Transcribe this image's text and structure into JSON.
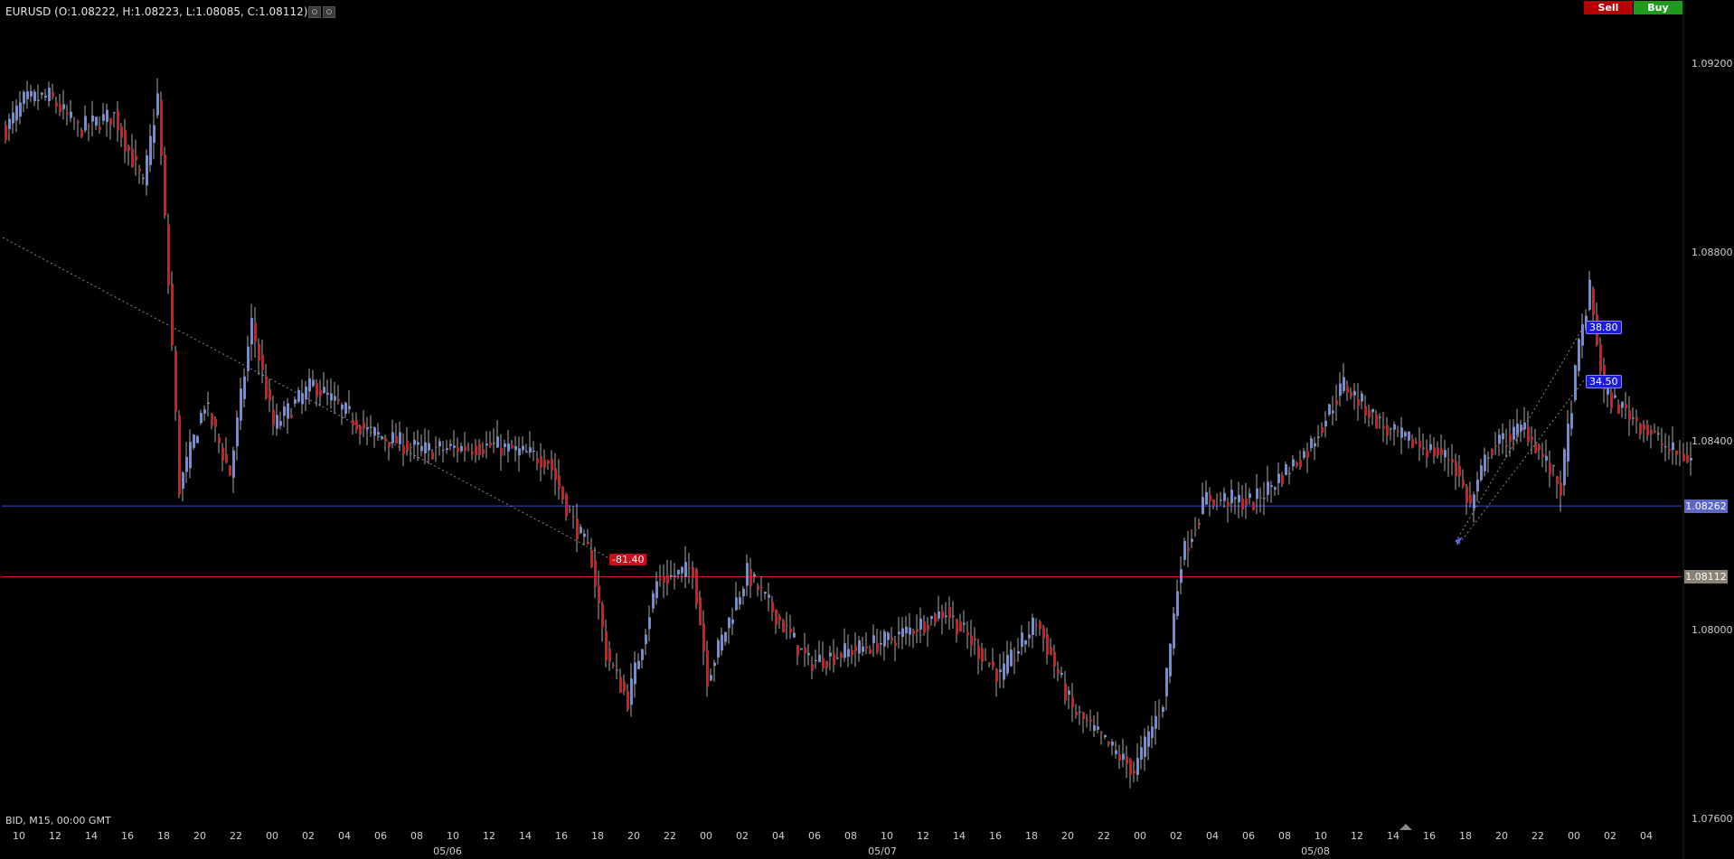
{
  "header": {
    "title": "EURUSD (O:1.08222, H:1.08223, L:1.08085, C:1.08112)"
  },
  "trade_buttons": {
    "sell_label": "Sell",
    "buy_label": "Buy"
  },
  "footer": {
    "info": "BID, M15, 00:00 GMT"
  },
  "colors": {
    "background": "#000000",
    "bull_candle": "#6a8ee8",
    "bear_candle": "#e01818",
    "horizontal_line": "#3a48d8",
    "last_price_line": "#c81818",
    "trendline": "#8a8a8a"
  },
  "chart_data": {
    "type": "candlestick",
    "symbol": "EURUSD",
    "timeframe": "M15",
    "ylim": [
      1.076,
      1.0925
    ],
    "y_ticks": [
      "1.09200",
      "1.08800",
      "1.08400",
      "1.08000",
      "1.07600"
    ],
    "x_ticks": [
      "10",
      "12",
      "14",
      "16",
      "18",
      "20",
      "22",
      "00",
      "02",
      "04",
      "06",
      "08",
      "10",
      "12",
      "14",
      "16",
      "18",
      "20",
      "22",
      "00",
      "02",
      "04",
      "06",
      "08",
      "10",
      "12",
      "14",
      "16",
      "18",
      "20",
      "22",
      "00",
      "02",
      "04",
      "06",
      "08",
      "10",
      "12",
      "14",
      "16",
      "18",
      "20",
      "22",
      "00",
      "02",
      "04"
    ],
    "date_labels": [
      "05/06",
      "05/07",
      "05/08"
    ],
    "horizontal_line_price": "1.08262",
    "last_price": "1.08112",
    "pl_labels": [
      "-81.40",
      "38.80",
      "34.50"
    ],
    "anchors": [
      {
        "i": 0,
        "p": 1.0906
      },
      {
        "i": 5,
        "p": 1.0912
      },
      {
        "i": 12,
        "p": 1.0913
      },
      {
        "i": 20,
        "p": 1.0906
      },
      {
        "i": 30,
        "p": 1.0909
      },
      {
        "i": 38,
        "p": 1.0894
      },
      {
        "i": 42,
        "p": 1.0913
      },
      {
        "i": 46,
        "p": 1.086
      },
      {
        "i": 48,
        "p": 1.083
      },
      {
        "i": 55,
        "p": 1.0848
      },
      {
        "i": 62,
        "p": 1.0833
      },
      {
        "i": 68,
        "p": 1.0865
      },
      {
        "i": 74,
        "p": 1.0843
      },
      {
        "i": 85,
        "p": 1.0852
      },
      {
        "i": 100,
        "p": 1.0842
      },
      {
        "i": 115,
        "p": 1.0838
      },
      {
        "i": 135,
        "p": 1.0839
      },
      {
        "i": 150,
        "p": 1.0836
      },
      {
        "i": 155,
        "p": 1.0826
      },
      {
        "i": 162,
        "p": 1.0815
      },
      {
        "i": 166,
        "p": 1.0795
      },
      {
        "i": 172,
        "p": 1.0785
      },
      {
        "i": 180,
        "p": 1.081
      },
      {
        "i": 190,
        "p": 1.0813
      },
      {
        "i": 194,
        "p": 1.079
      },
      {
        "i": 205,
        "p": 1.0812
      },
      {
        "i": 222,
        "p": 1.0793
      },
      {
        "i": 245,
        "p": 1.0798
      },
      {
        "i": 260,
        "p": 1.0804
      },
      {
        "i": 275,
        "p": 1.079
      },
      {
        "i": 285,
        "p": 1.0802
      },
      {
        "i": 295,
        "p": 1.0783
      },
      {
        "i": 312,
        "p": 1.077
      },
      {
        "i": 320,
        "p": 1.0785
      },
      {
        "i": 325,
        "p": 1.0815
      },
      {
        "i": 332,
        "p": 1.0828
      },
      {
        "i": 345,
        "p": 1.0827
      },
      {
        "i": 360,
        "p": 1.0838
      },
      {
        "i": 370,
        "p": 1.0852
      },
      {
        "i": 382,
        "p": 1.0842
      },
      {
        "i": 400,
        "p": 1.0836
      },
      {
        "i": 405,
        "p": 1.0826
      },
      {
        "i": 410,
        "p": 1.0838
      },
      {
        "i": 420,
        "p": 1.0843
      },
      {
        "i": 430,
        "p": 1.083
      },
      {
        "i": 435,
        "p": 1.086
      },
      {
        "i": 438,
        "p": 1.0872
      },
      {
        "i": 442,
        "p": 1.085
      },
      {
        "i": 450,
        "p": 1.0845
      },
      {
        "i": 460,
        "p": 1.0838
      },
      {
        "i": 466,
        "p": 1.0836
      }
    ]
  }
}
